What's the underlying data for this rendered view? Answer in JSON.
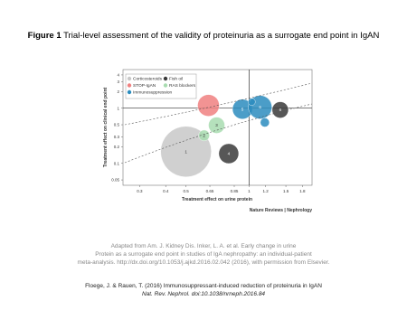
{
  "figure_label": "Figure 1",
  "figure_title": "Trial-level assessment of the validity of proteinuria as a surrogate end point in IgAN",
  "chart_data": {
    "type": "bubble",
    "log_x": true,
    "log_y": true,
    "xlabel": "Treatment effect on urine protein",
    "ylabel": "Treatment effect on clinical end point",
    "xlim": [
      0.25,
      2
    ],
    "ylim": [
      0.04,
      5
    ],
    "xticks": [
      0.3,
      0.4,
      0.5,
      0.65,
      0.85,
      1,
      1.2,
      1.5,
      1.8
    ],
    "yticks": [
      4,
      3,
      2,
      1,
      0.5,
      0.3,
      0.2,
      0.1,
      0.05
    ],
    "series": [
      {
        "name": "Corticosteroids",
        "color": "#c8c8c8",
        "x": [
          0.5
        ],
        "values": [
          0.163
        ],
        "sizes": [
          28
        ],
        "labels": [
          "1"
        ]
      },
      {
        "name": "STOP-IgAN",
        "color": "#f08080",
        "x": [
          0.64
        ],
        "values": [
          1.12
        ],
        "sizes": [
          12
        ],
        "labels": [
          null
        ]
      },
      {
        "name": "Immunosuppression",
        "color": "#2b8cbe",
        "x": [
          0.93,
          1.13,
          1.19,
          1.03
        ],
        "values": [
          0.96,
          1.04,
          0.55,
          1.3
        ],
        "sizes": [
          11,
          13,
          5,
          4
        ],
        "labels": [
          "5",
          "6",
          null,
          null
        ]
      },
      {
        "name": "Fish oil",
        "color": "#3a3a3a",
        "x": [
          0.8,
          1.41
        ],
        "values": [
          0.15,
          0.93
        ],
        "sizes": [
          11,
          9
        ],
        "labels": [
          "4",
          "6"
        ]
      },
      {
        "name": "RAS blockers",
        "color": "#a8dcb0",
        "x": [
          0.61,
          0.7
        ],
        "values": [
          0.32,
          0.49
        ],
        "sizes": [
          6,
          9
        ],
        "labels": [
          "2",
          "3"
        ]
      }
    ],
    "source": "Nature Reviews | Nephrology"
  },
  "credit_lines": [
    "Adapted from Am. J. Kidney Dis. Inker, L. A. et al. Early change in urine",
    "Protein as a surrogate end point in studies of IgA nephropathy: an individual-patient",
    "meta-analysis. http://dx.doi.org/10.1053/j.ajkd.2016.02.042 (2016), with permission from Elsevier."
  ],
  "citation_lines": [
    "Floege, J. & Rauen, T. (2016) Immunosuppressant-induced reduction of proteinuria in IgAN",
    "Nat. Rev. Nephrol. doi:10.1038/nrneph.2016.84"
  ]
}
